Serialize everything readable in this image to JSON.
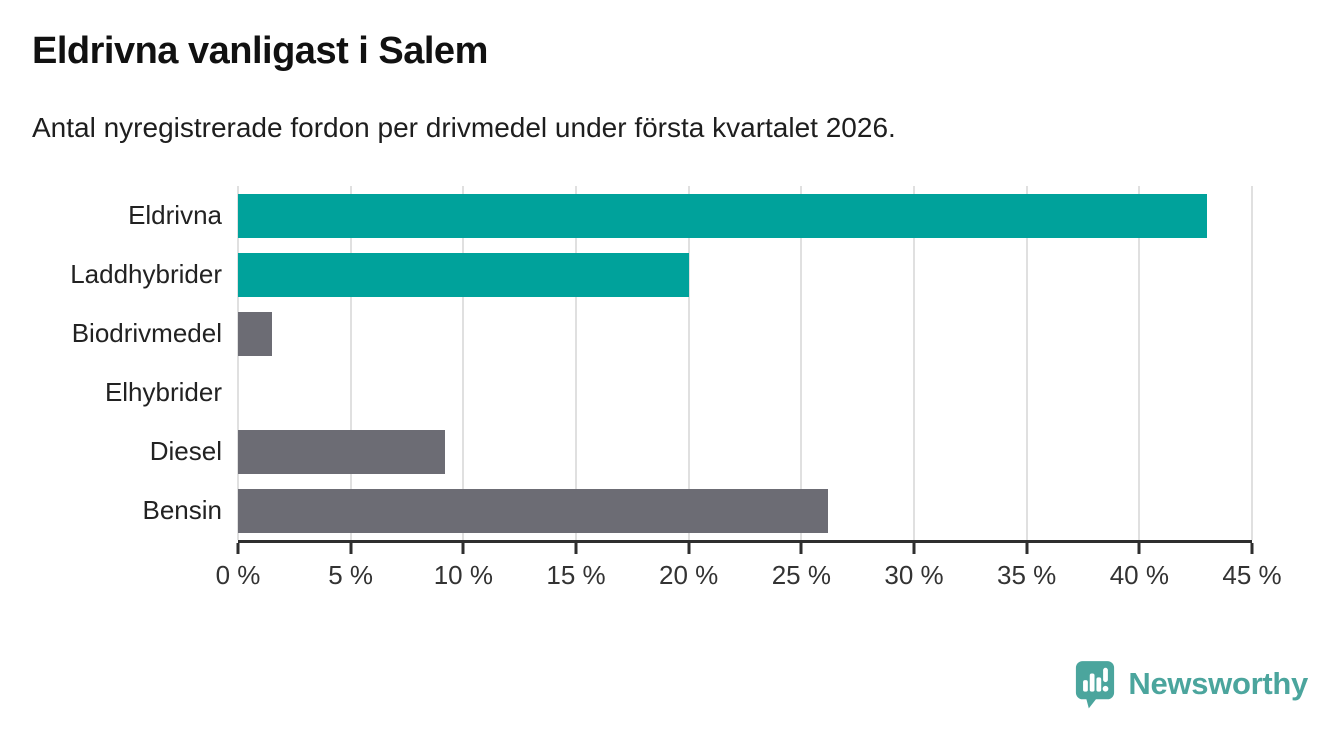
{
  "header": {
    "title": "Eldrivna vanligast i Salem",
    "subtitle": "Antal nyregistrerade fordon per drivmedel under första kvartalet 2026."
  },
  "chart_data": {
    "type": "bar",
    "orientation": "horizontal",
    "title": "Eldrivna vanligast i Salem",
    "subtitle": "Antal nyregistrerade fordon per drivmedel under första kvartalet 2026.",
    "categories": [
      "Eldrivna",
      "Laddhybrider",
      "Biodrivmedel",
      "Elhybrider",
      "Diesel",
      "Bensin"
    ],
    "values": [
      43,
      20,
      1.5,
      0,
      9.2,
      26.2
    ],
    "unit": "%",
    "xlim": [
      0,
      45
    ],
    "x_tick_step": 5,
    "x_tick_labels": [
      "0 %",
      "5 %",
      "10 %",
      "15 %",
      "20 %",
      "25 %",
      "30 %",
      "35 %",
      "40 %",
      "45 %"
    ],
    "grid": true,
    "legend": false,
    "colors": {
      "highlight": "#00A29B",
      "default": "#6C6C74"
    },
    "bar_colors": [
      "#00A29B",
      "#00A29B",
      "#6C6C74",
      "#6C6C74",
      "#6C6C74",
      "#6C6C74"
    ],
    "gridline_color": "#e0e0e0",
    "axis_color": "#2e2e2e"
  },
  "branding": {
    "logo_text": "Newsworthy",
    "logo_color": "#4BA59D",
    "logo_icon": "newsworthy-speech-bubble-chart-icon"
  }
}
